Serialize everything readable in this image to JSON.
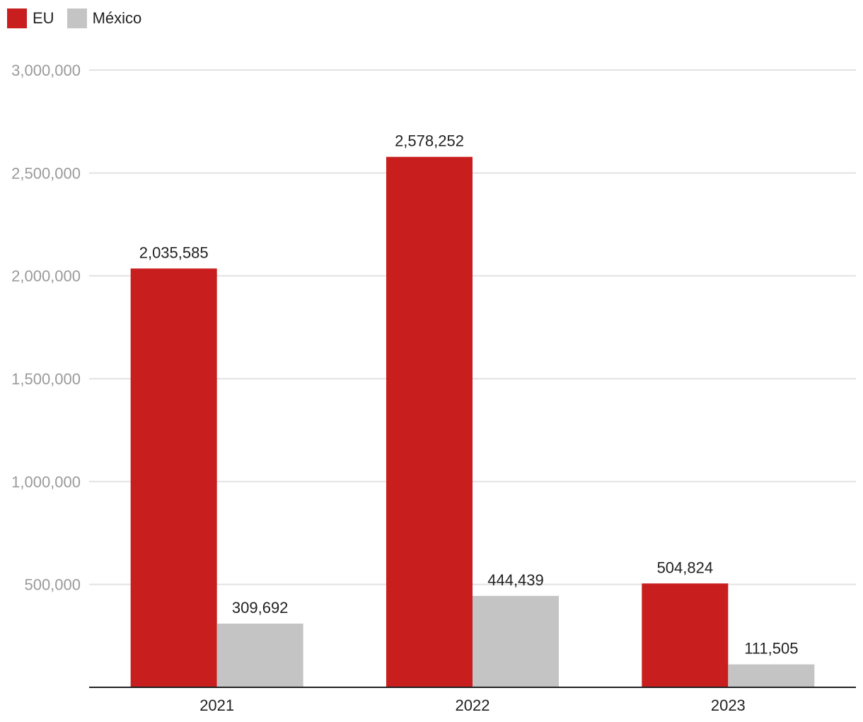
{
  "chart_data": {
    "type": "bar",
    "categories": [
      "2021",
      "2022",
      "2023"
    ],
    "series": [
      {
        "name": "EU",
        "color": "#c81e1e",
        "values": [
          2035585,
          2578252,
          504824
        ],
        "labels": [
          "2,035,585",
          "2,578,252",
          "504,824"
        ]
      },
      {
        "name": "México",
        "color": "#c4c4c4",
        "values": [
          309692,
          444439,
          111505
        ],
        "labels": [
          "309,692",
          "444,439",
          "111,505"
        ]
      }
    ],
    "ylim": [
      0,
      3000000
    ],
    "yticks": [
      500000,
      1000000,
      1500000,
      2000000,
      2500000,
      3000000
    ],
    "ytick_labels": [
      "500,000",
      "1,000,000",
      "1,500,000",
      "2,000,000",
      "2,500,000",
      "3,000,000"
    ],
    "grid": true,
    "legend_position": "top-left"
  }
}
